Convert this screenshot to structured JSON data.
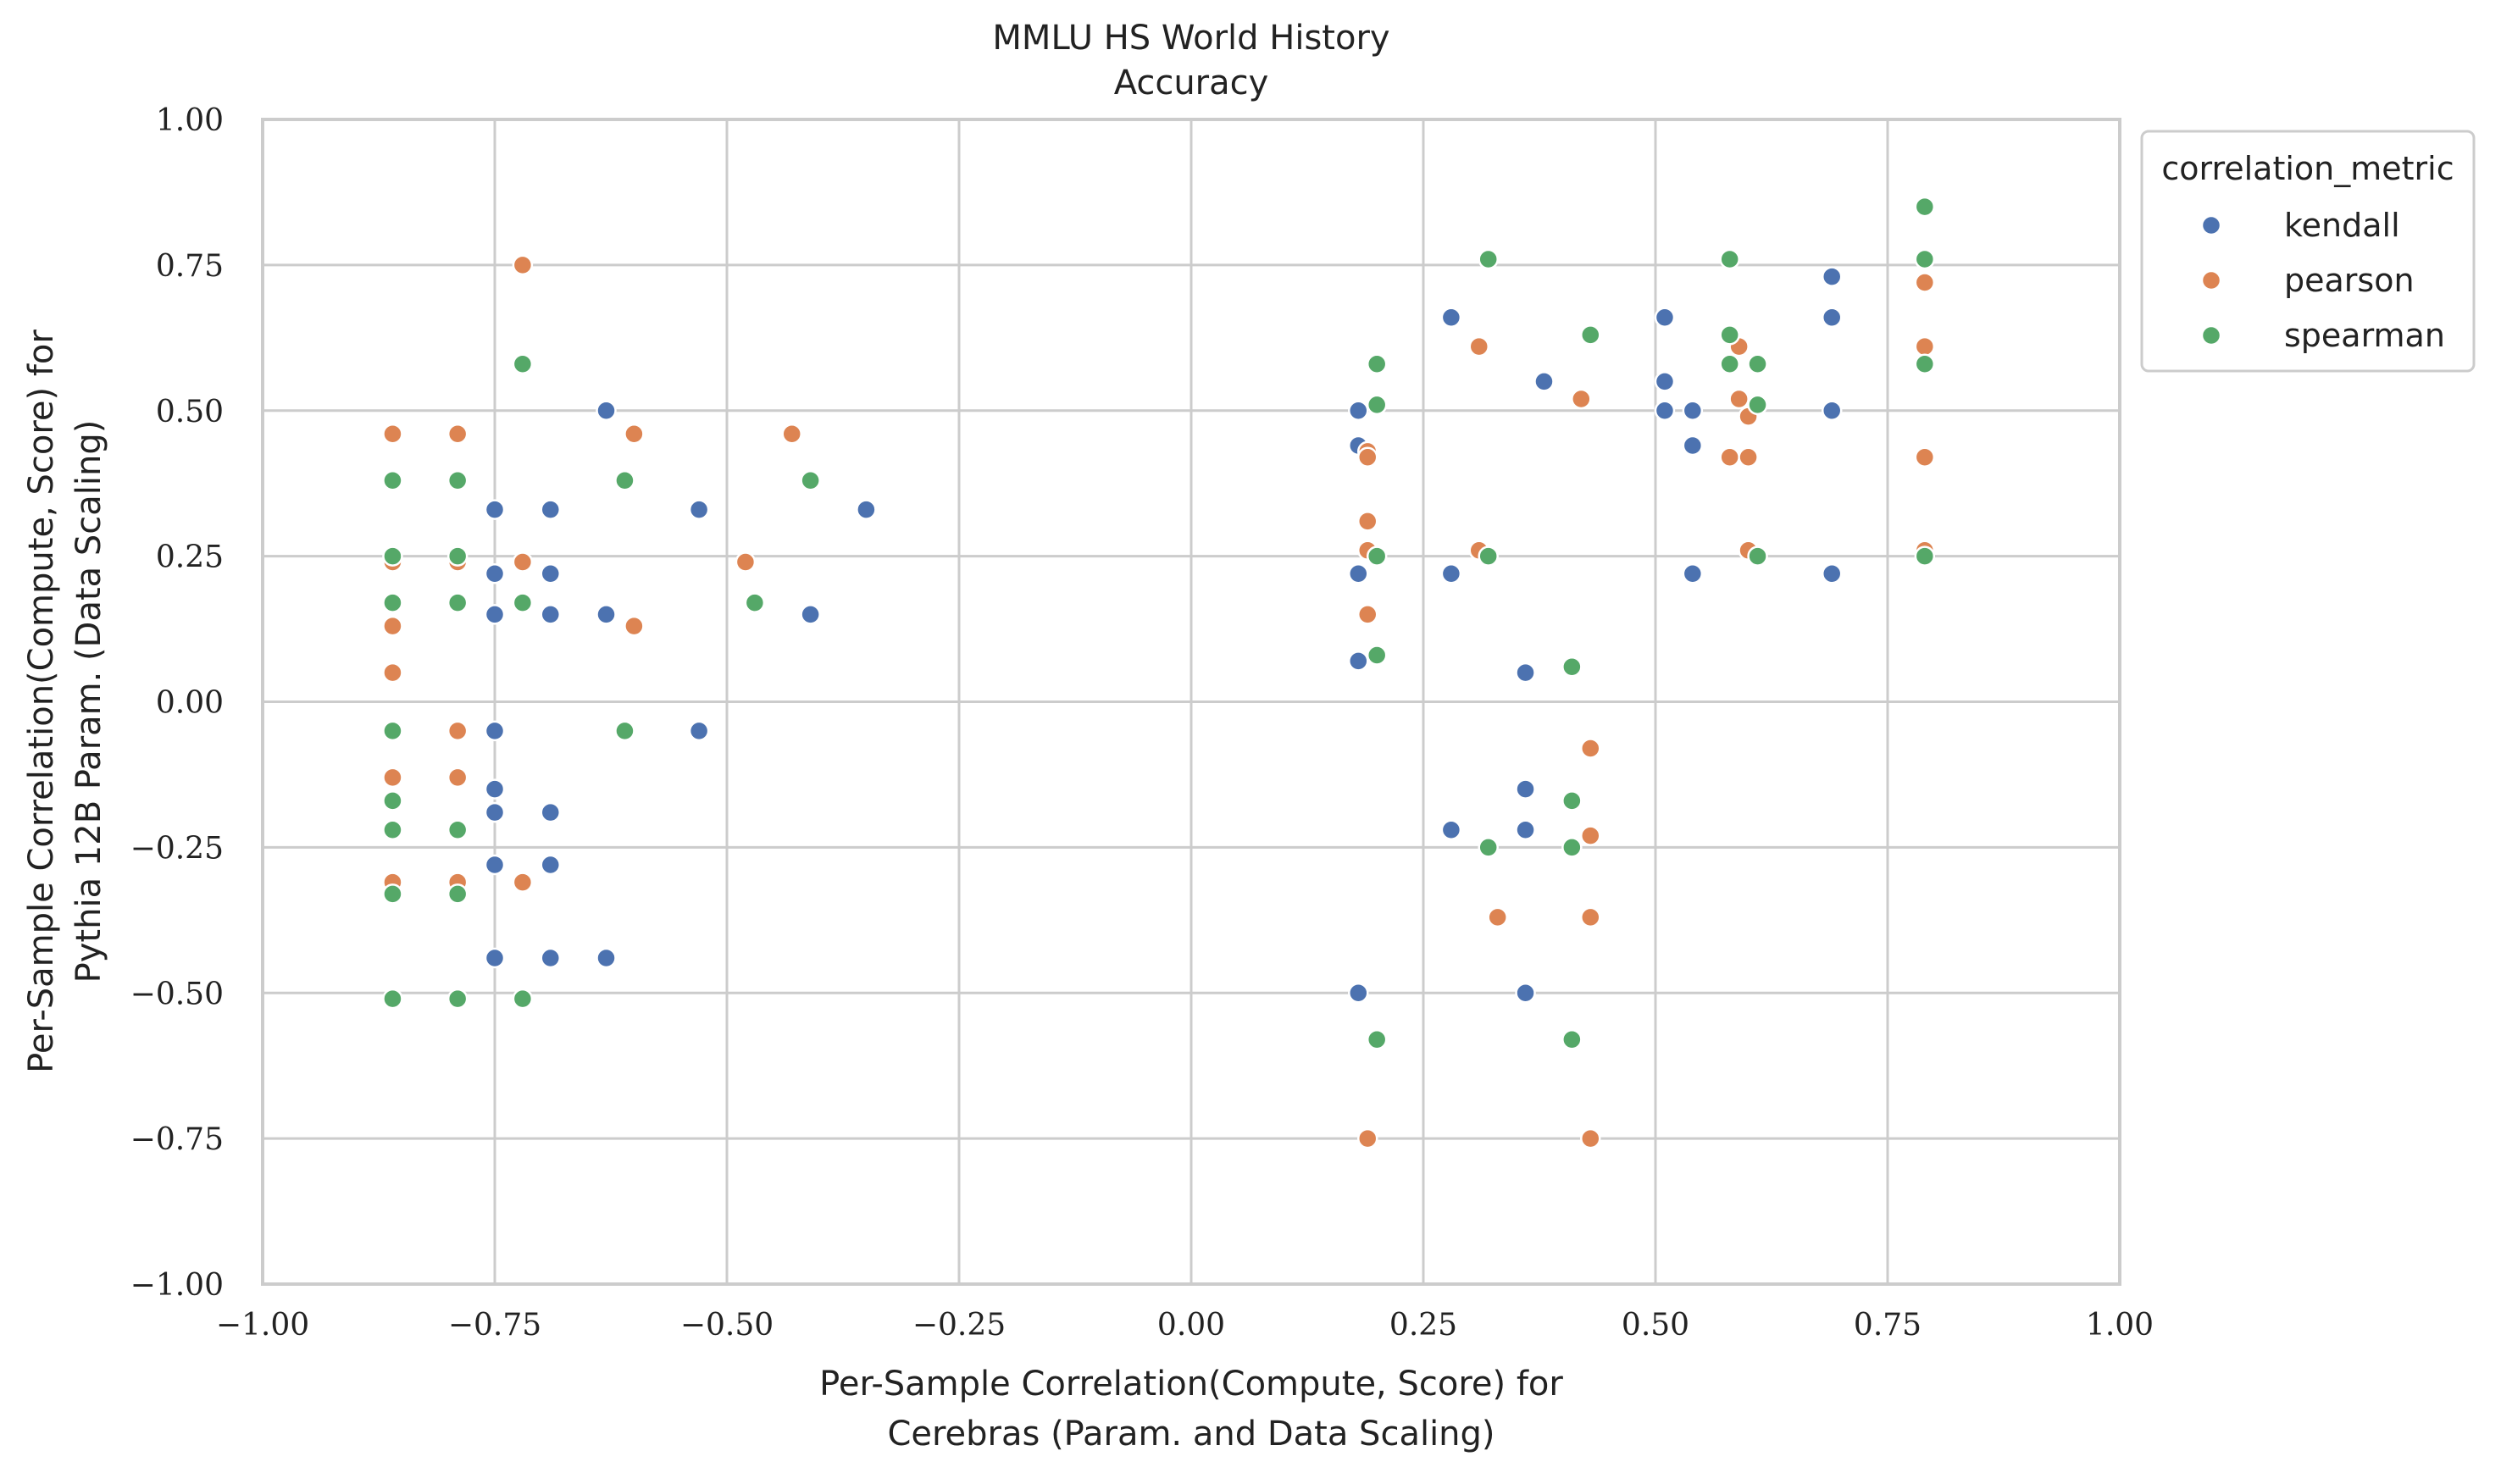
{
  "chart_data": {
    "type": "scatter",
    "title": "MMLU HS World History",
    "subtitle": "Accuracy",
    "xlabel_lines": [
      "Per-Sample Correlation(Compute, Score) for",
      "Cerebras (Param. and Data Scaling)"
    ],
    "ylabel_lines": [
      "Per-Sample Correlation(Compute, Score) for",
      "Pythia 12B Param. (Data Scaling)"
    ],
    "xlim": [
      -1.0,
      1.0
    ],
    "ylim": [
      -1.0,
      1.0
    ],
    "x_ticks": [
      "−1.00",
      "−0.75",
      "−0.50",
      "−0.25",
      "0.00",
      "0.25",
      "0.50",
      "0.75",
      "1.00"
    ],
    "y_ticks": [
      "−1.00",
      "−0.75",
      "−0.50",
      "−0.25",
      "0.00",
      "0.25",
      "0.50",
      "0.75",
      "1.00"
    ],
    "grid": true,
    "legend_position": "outside-top-right",
    "legend_title": "correlation_metric",
    "series": [
      {
        "name": "kendall",
        "color": "#4C72B0",
        "points": [
          [
            -0.63,
            0.5
          ],
          [
            -0.75,
            0.33
          ],
          [
            -0.69,
            0.33
          ],
          [
            -0.53,
            0.33
          ],
          [
            -0.35,
            0.33
          ],
          [
            -0.75,
            0.22
          ],
          [
            -0.69,
            0.22
          ],
          [
            -0.75,
            0.15
          ],
          [
            -0.69,
            0.15
          ],
          [
            -0.63,
            0.15
          ],
          [
            -0.41,
            0.15
          ],
          [
            -0.75,
            -0.05
          ],
          [
            -0.53,
            -0.05
          ],
          [
            -0.75,
            -0.15
          ],
          [
            -0.75,
            -0.19
          ],
          [
            -0.69,
            -0.19
          ],
          [
            -0.75,
            -0.28
          ],
          [
            -0.69,
            -0.28
          ],
          [
            -0.75,
            -0.44
          ],
          [
            -0.69,
            -0.44
          ],
          [
            -0.63,
            -0.44
          ],
          [
            0.28,
            0.66
          ],
          [
            0.51,
            0.66
          ],
          [
            0.69,
            0.66
          ],
          [
            0.69,
            0.73
          ],
          [
            0.38,
            0.55
          ],
          [
            0.51,
            0.55
          ],
          [
            0.18,
            0.5
          ],
          [
            0.51,
            0.5
          ],
          [
            0.54,
            0.5
          ],
          [
            0.69,
            0.5
          ],
          [
            0.18,
            0.44
          ],
          [
            0.54,
            0.44
          ],
          [
            0.18,
            0.22
          ],
          [
            0.28,
            0.22
          ],
          [
            0.54,
            0.22
          ],
          [
            0.69,
            0.22
          ],
          [
            0.18,
            0.07
          ],
          [
            0.36,
            0.05
          ],
          [
            0.36,
            -0.15
          ],
          [
            0.28,
            -0.22
          ],
          [
            0.36,
            -0.22
          ],
          [
            0.18,
            -0.5
          ],
          [
            0.36,
            -0.5
          ]
        ]
      },
      {
        "name": "pearson",
        "color": "#DD8452",
        "points": [
          [
            -0.72,
            0.75
          ],
          [
            -0.86,
            0.46
          ],
          [
            -0.79,
            0.46
          ],
          [
            -0.6,
            0.46
          ],
          [
            -0.43,
            0.46
          ],
          [
            -0.86,
            0.38
          ],
          [
            -0.86,
            0.24
          ],
          [
            -0.79,
            0.24
          ],
          [
            -0.72,
            0.24
          ],
          [
            -0.48,
            0.24
          ],
          [
            -0.86,
            0.13
          ],
          [
            -0.6,
            0.13
          ],
          [
            -0.86,
            0.05
          ],
          [
            -0.86,
            -0.05
          ],
          [
            -0.79,
            -0.05
          ],
          [
            -0.86,
            -0.13
          ],
          [
            -0.79,
            -0.13
          ],
          [
            -0.86,
            -0.31
          ],
          [
            -0.79,
            -0.31
          ],
          [
            -0.72,
            -0.31
          ],
          [
            0.79,
            0.72
          ],
          [
            0.31,
            0.61
          ],
          [
            0.59,
            0.61
          ],
          [
            0.79,
            0.61
          ],
          [
            0.42,
            0.52
          ],
          [
            0.59,
            0.52
          ],
          [
            0.6,
            0.49
          ],
          [
            0.19,
            0.43
          ],
          [
            0.19,
            0.42
          ],
          [
            0.58,
            0.42
          ],
          [
            0.6,
            0.42
          ],
          [
            0.79,
            0.42
          ],
          [
            0.19,
            0.31
          ],
          [
            0.19,
            0.26
          ],
          [
            0.31,
            0.26
          ],
          [
            0.6,
            0.26
          ],
          [
            0.79,
            0.26
          ],
          [
            0.19,
            0.15
          ],
          [
            0.43,
            -0.08
          ],
          [
            0.43,
            -0.23
          ],
          [
            0.33,
            -0.37
          ],
          [
            0.43,
            -0.37
          ],
          [
            0.19,
            -0.75
          ],
          [
            0.43,
            -0.75
          ]
        ]
      },
      {
        "name": "spearman",
        "color": "#55A868",
        "points": [
          [
            -0.72,
            0.58
          ],
          [
            -0.86,
            0.38
          ],
          [
            -0.79,
            0.38
          ],
          [
            -0.61,
            0.38
          ],
          [
            -0.41,
            0.38
          ],
          [
            -0.86,
            0.25
          ],
          [
            -0.79,
            0.25
          ],
          [
            -0.86,
            0.17
          ],
          [
            -0.79,
            0.17
          ],
          [
            -0.72,
            0.17
          ],
          [
            -0.47,
            0.17
          ],
          [
            -0.86,
            -0.05
          ],
          [
            -0.61,
            -0.05
          ],
          [
            -0.86,
            -0.17
          ],
          [
            -0.86,
            -0.22
          ],
          [
            -0.79,
            -0.22
          ],
          [
            -0.86,
            -0.33
          ],
          [
            -0.79,
            -0.33
          ],
          [
            -0.86,
            -0.51
          ],
          [
            -0.79,
            -0.51
          ],
          [
            -0.72,
            -0.51
          ],
          [
            0.79,
            0.85
          ],
          [
            0.32,
            0.76
          ],
          [
            0.58,
            0.76
          ],
          [
            0.79,
            0.76
          ],
          [
            0.43,
            0.63
          ],
          [
            0.58,
            0.63
          ],
          [
            0.2,
            0.58
          ],
          [
            0.58,
            0.58
          ],
          [
            0.61,
            0.58
          ],
          [
            0.79,
            0.58
          ],
          [
            0.2,
            0.51
          ],
          [
            0.61,
            0.51
          ],
          [
            0.2,
            0.25
          ],
          [
            0.32,
            0.25
          ],
          [
            0.61,
            0.25
          ],
          [
            0.79,
            0.25
          ],
          [
            0.2,
            0.08
          ],
          [
            0.41,
            0.06
          ],
          [
            0.41,
            -0.17
          ],
          [
            0.32,
            -0.25
          ],
          [
            0.41,
            -0.25
          ],
          [
            0.2,
            -0.58
          ],
          [
            0.41,
            -0.58
          ]
        ]
      }
    ]
  }
}
